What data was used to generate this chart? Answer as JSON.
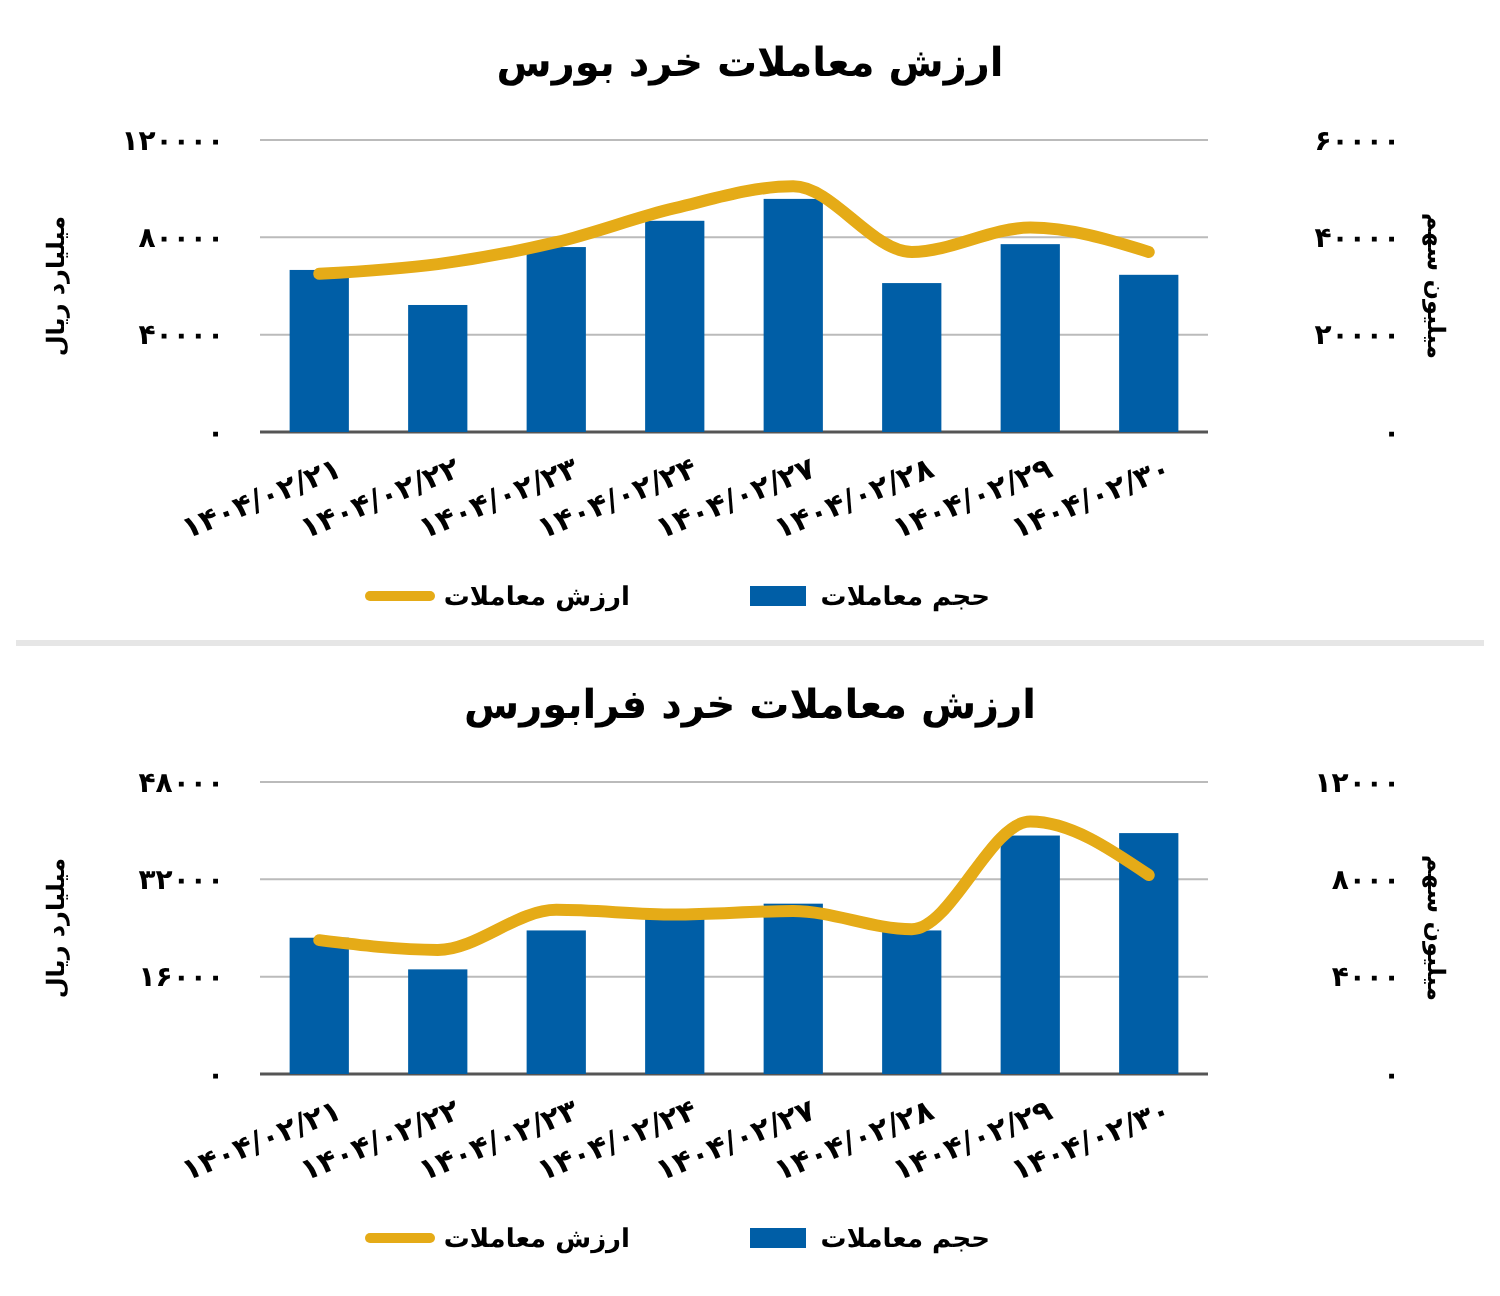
{
  "chart_data": [
    {
      "type": "bar",
      "title": "ارزش معاملات خرد بورس",
      "ylabel": "میلیارد ریال",
      "y2label": "میلیون سهم",
      "categories": [
        "۱۴۰۴/۰۲/۲۱",
        "۱۴۰۴/۰۲/۲۲",
        "۱۴۰۴/۰۲/۲۳",
        "۱۴۰۴/۰۲/۲۴",
        "۱۴۰۴/۰۲/۲۷",
        "۱۴۰۴/۰۲/۲۸",
        "۱۴۰۴/۰۲/۲۹",
        "۱۴۰۴/۰۲/۳۰"
      ],
      "series": [
        {
          "name": "حجم معاملات",
          "axis": "y2",
          "color": "#005ea6",
          "values": [
            33300,
            26100,
            38000,
            43400,
            47900,
            30600,
            38600,
            32300
          ]
        },
        {
          "name": "ارزش معاملات",
          "type": "line",
          "axis": "y",
          "color": "#e5ab17",
          "values": [
            65000,
            69000,
            78000,
            92000,
            101000,
            74000,
            84000,
            74000
          ]
        }
      ],
      "ylim": [
        0,
        120000
      ],
      "yticks": [
        {
          "value": 0,
          "label": "۰"
        },
        {
          "value": 40000,
          "label": "۴۰۰۰۰"
        },
        {
          "value": 80000,
          "label": "۸۰۰۰۰"
        },
        {
          "value": 120000,
          "label": "۱۲۰۰۰۰"
        }
      ],
      "y2lim": [
        0,
        60000
      ],
      "y2ticks": [
        {
          "value": 0,
          "label": "۰"
        },
        {
          "value": 20000,
          "label": "۲۰۰۰۰"
        },
        {
          "value": 40000,
          "label": "۴۰۰۰۰"
        },
        {
          "value": 60000,
          "label": "۶۰۰۰۰"
        }
      ],
      "grid": "y",
      "legend": "bottom",
      "marker": "none",
      "line_style": "solid"
    },
    {
      "type": "bar",
      "title": "ارزش معاملات خرد فرابورس",
      "ylabel": "میلیارد ریال",
      "y2label": "میلیون سهم",
      "categories": [
        "۱۴۰۴/۰۲/۲۱",
        "۱۴۰۴/۰۲/۲۲",
        "۱۴۰۴/۰۲/۲۳",
        "۱۴۰۴/۰۲/۲۴",
        "۱۴۰۴/۰۲/۲۷",
        "۱۴۰۴/۰۲/۲۸",
        "۱۴۰۴/۰۲/۲۹",
        "۱۴۰۴/۰۲/۳۰"
      ],
      "series": [
        {
          "name": "حجم معاملات",
          "axis": "y2",
          "color": "#005ea6",
          "values": [
            5600,
            4300,
            5900,
            6400,
            7000,
            5900,
            9800,
            9900
          ]
        },
        {
          "name": "ارزش معاملات",
          "type": "line",
          "axis": "y",
          "color": "#e5ab17",
          "values": [
            22000,
            20400,
            27000,
            26200,
            26800,
            23800,
            41500,
            32700
          ]
        }
      ],
      "ylim": [
        0,
        48000
      ],
      "yticks": [
        {
          "value": 0,
          "label": "۰"
        },
        {
          "value": 16000,
          "label": "۱۶۰۰۰"
        },
        {
          "value": 32000,
          "label": "۳۲۰۰۰"
        },
        {
          "value": 48000,
          "label": "۴۸۰۰۰"
        }
      ],
      "y2lim": [
        0,
        12000
      ],
      "y2ticks": [
        {
          "value": 0,
          "label": "۰"
        },
        {
          "value": 4000,
          "label": "۴۰۰۰"
        },
        {
          "value": 8000,
          "label": "۸۰۰۰"
        },
        {
          "value": 12000,
          "label": "۱۲۰۰۰"
        }
      ],
      "grid": "y",
      "legend": "bottom",
      "marker": "none",
      "line_style": "solid"
    }
  ]
}
